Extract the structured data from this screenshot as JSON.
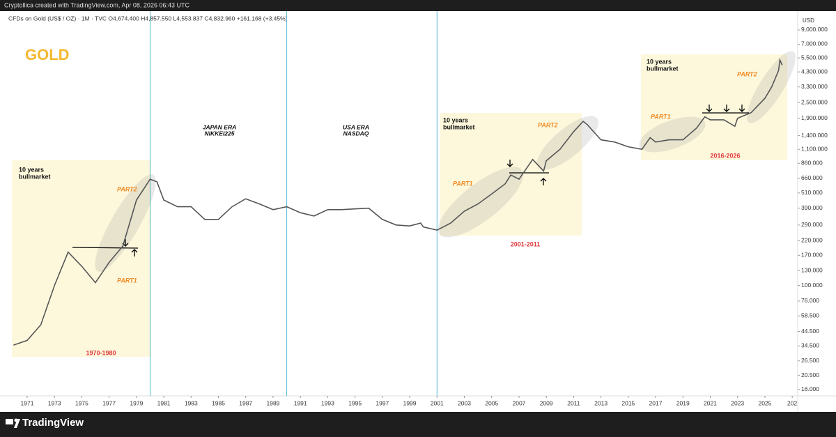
{
  "header": "Cryptollica created with TradingView.com, Apr 08, 2026 06:43 UTC",
  "footer": "TradingView",
  "chart_data": {
    "type": "line",
    "legend": "CFDs on Gold (US$ / OZ) · 1M · TVC  O4,674.400 H4,857.550 L4,553.837 C4,832.960 +161.168 (+3.45%)",
    "y_axis_label": "USD",
    "log_scale": true,
    "x": [
      1970,
      1971,
      1972,
      1973,
      1974,
      1975,
      1976,
      1977,
      1978,
      1979,
      1980,
      1980.5,
      1981,
      1982,
      1983,
      1984,
      1985,
      1986,
      1987,
      1988,
      1989,
      1990,
      1991,
      1992,
      1993,
      1994,
      1995,
      1996,
      1997,
      1998,
      1999,
      1999.8,
      2000,
      2001,
      2002,
      2003,
      2004,
      2005,
      2006,
      2006.4,
      2007,
      2008,
      2008.8,
      2009,
      2010,
      2011,
      2011.7,
      2012,
      2013,
      2014,
      2015,
      2016,
      2016.6,
      2017,
      2018,
      2019,
      2020,
      2020.6,
      2021,
      2022,
      2022.8,
      2023,
      2024,
      2025,
      2025.5,
      2026,
      2026.1,
      2026.27
    ],
    "series": [
      {
        "name": "Gold",
        "color": "#555555",
        "values": [
          35,
          38,
          50,
          100,
          180,
          140,
          105,
          150,
          200,
          450,
          650,
          620,
          450,
          400,
          400,
          320,
          320,
          400,
          460,
          420,
          380,
          400,
          360,
          340,
          380,
          380,
          385,
          390,
          320,
          290,
          285,
          300,
          280,
          265,
          300,
          370,
          420,
          500,
          600,
          700,
          650,
          920,
          750,
          900,
          1100,
          1500,
          1800,
          1700,
          1300,
          1250,
          1150,
          1100,
          1350,
          1250,
          1300,
          1300,
          1600,
          1950,
          1850,
          1850,
          1650,
          1900,
          2100,
          2700,
          3300,
          4400,
          5300,
          4833
        ]
      }
    ],
    "xlim": [
      1969.42,
      2027.4
    ],
    "xticks": [
      1971,
      1973,
      1975,
      1977,
      1979,
      1981,
      1983,
      1985,
      1987,
      1989,
      1991,
      1993,
      1995,
      1997,
      1999,
      2001,
      2003,
      2005,
      2007,
      2009,
      2011,
      2013,
      2015,
      2017,
      2019,
      2021,
      2023,
      2025,
      {
        "value": 2027,
        "label": "202"
      }
    ],
    "ylim": [
      14.3,
      12230
    ],
    "yticks": [
      {
        "value": 16,
        "label": "16.000"
      },
      {
        "value": 20.5,
        "label": "20.500"
      },
      {
        "value": 26.5,
        "label": "26.500"
      },
      {
        "value": 34.5,
        "label": "34.500"
      },
      {
        "value": 44.5,
        "label": "44.500"
      },
      {
        "value": 58.5,
        "label": "58.500"
      },
      {
        "value": 76,
        "label": "76.000"
      },
      {
        "value": 100,
        "label": "100.000"
      },
      {
        "value": 130,
        "label": "130.000"
      },
      {
        "value": 170,
        "label": "170.000"
      },
      {
        "value": 220,
        "label": "220.000"
      },
      {
        "value": 290,
        "label": "290.000"
      },
      {
        "value": 390,
        "label": "390.000"
      },
      {
        "value": 510,
        "label": "510.000"
      },
      {
        "value": 660,
        "label": "660.000"
      },
      {
        "value": 860,
        "label": "860.000"
      },
      {
        "value": 1100,
        "label": "1,100.000"
      },
      {
        "value": 1400,
        "label": "1,400.000"
      },
      {
        "value": 1900,
        "label": "1,900.000"
      },
      {
        "value": 2500,
        "label": "2,500.000"
      },
      {
        "value": 3300,
        "label": "3,300.000"
      },
      {
        "value": 4300,
        "label": "4,300.000"
      },
      {
        "value": 5500,
        "label": "5,500.000"
      },
      {
        "value": 7000,
        "label": "7,000.000"
      },
      {
        "value": 9000,
        "label": "9,000.000"
      }
    ],
    "era_lines": [
      1980,
      1990,
      2001
    ],
    "annotations": [
      "GOLD",
      "10 years",
      "bullmarket",
      "PART2",
      "PART1",
      "1970-1980",
      "JAPAN ERA",
      "NIKKEI225",
      "USA ERA",
      "NASDAQ",
      "10 years",
      "bullmarket",
      "PART2",
      "PART1",
      "2001-2011",
      "10 years",
      "bullmarket",
      "PART2",
      "PART1",
      "2016-2026"
    ]
  }
}
